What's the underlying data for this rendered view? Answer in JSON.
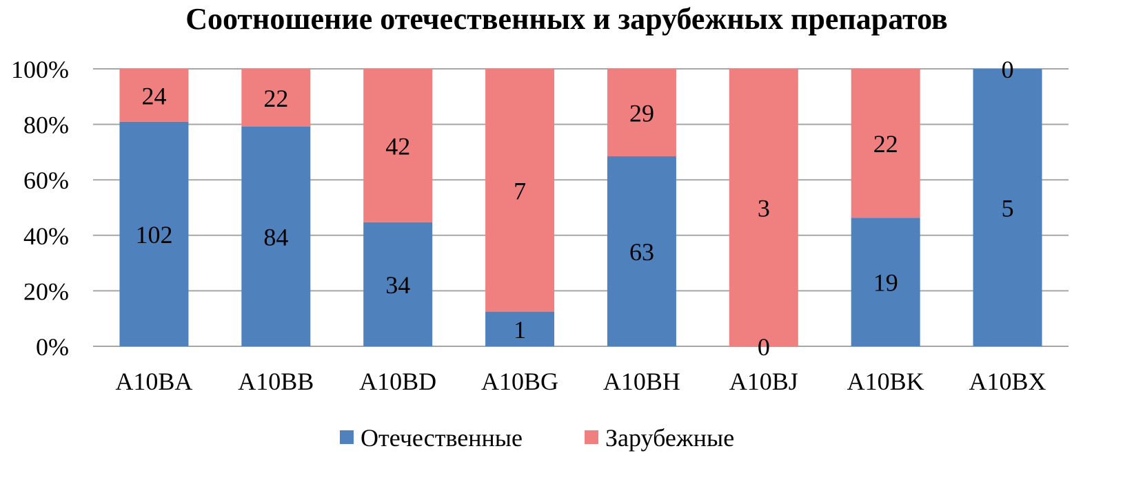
{
  "chart_data": {
    "type": "bar",
    "stacking": "percent",
    "title": "Соотношение отечественных и зарубежных препаратов",
    "categories": [
      "A10BA",
      "A10BB",
      "A10BD",
      "A10BG",
      "A10BH",
      "A10BJ",
      "A10BK",
      "A10BX"
    ],
    "series": [
      {
        "name": "Отечественные",
        "color": "#4f81bd",
        "values": [
          102,
          84,
          34,
          1,
          63,
          0,
          19,
          5
        ]
      },
      {
        "name": "Зарубежные",
        "color": "#f08080",
        "values": [
          24,
          22,
          42,
          7,
          29,
          3,
          22,
          0
        ]
      }
    ],
    "y_ticks": [
      "0%",
      "20%",
      "40%",
      "60%",
      "80%",
      "100%"
    ],
    "ylim": [
      0,
      100
    ],
    "grid": true,
    "legend_position": "bottom"
  }
}
